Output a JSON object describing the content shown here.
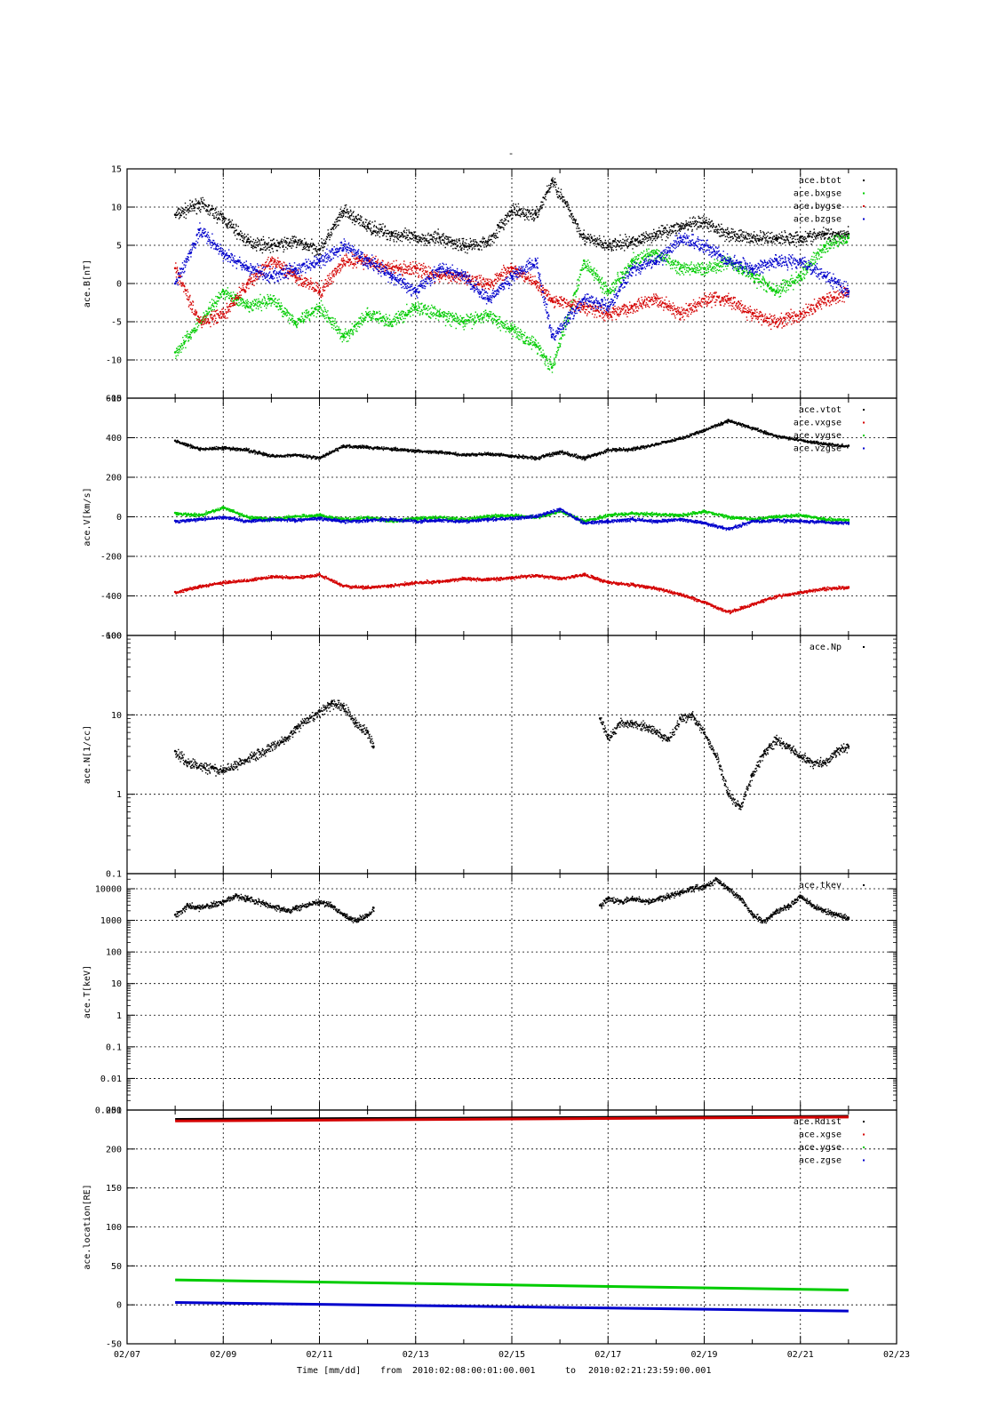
{
  "figure_title": "-",
  "footer": {
    "xlabel": "Time [mm/dd]",
    "range_from_label": "from",
    "range_start": "2010:02:08:00:01:00.001",
    "range_to_label": "to",
    "range_end": "2010:02:21:23:59:00.001"
  },
  "colors": {
    "black": "#000000",
    "red": "#d40000",
    "green": "#00cc00",
    "blue": "#0000cc"
  },
  "chart_data": [
    {
      "type": "scatter",
      "panel": "magnetic-field",
      "ylabel": "ace.B[nT]",
      "yscale": "linear",
      "ylim": [
        -15,
        15
      ],
      "yticks": [
        15,
        10,
        5,
        0,
        -5,
        -10,
        -15
      ],
      "xlim": [
        "02/07",
        "02/23"
      ],
      "grid": true,
      "legend_position": "top-right",
      "series": [
        {
          "name": "ace.btot",
          "color": "#000000",
          "x": [
            "02/08 00:00",
            "02/08 12:00",
            "02/09 00:00",
            "02/09 12:00",
            "02/10 00:00",
            "02/10 12:00",
            "02/11 00:00",
            "02/11 12:00",
            "02/12 00:00",
            "02/12 12:00",
            "02/13 00:00",
            "02/13 12:00",
            "02/14 00:00",
            "02/14 12:00",
            "02/15 00:00",
            "02/15 12:00",
            "02/15 20:00",
            "02/16 12:00",
            "02/17 00:00",
            "02/17 12:00",
            "02/18 00:00",
            "02/18 12:00",
            "02/19 00:00",
            "02/19 12:00",
            "02/20 00:00",
            "02/20 12:00",
            "02/21 00:00",
            "02/21 12:00",
            "02/22 00:00"
          ],
          "y": [
            9,
            10.5,
            8.5,
            5.5,
            5,
            5.5,
            4.5,
            9.5,
            7.5,
            6.5,
            6,
            6,
            5,
            5.5,
            9.5,
            9,
            13.5,
            6,
            5,
            5.5,
            6.5,
            7.5,
            8,
            6.5,
            6,
            6,
            6,
            6.5,
            6.5
          ]
        },
        {
          "name": "ace.bxgse",
          "color": "#00cc00",
          "x": [
            "02/08 00:00",
            "02/08 12:00",
            "02/09 00:00",
            "02/09 12:00",
            "02/10 00:00",
            "02/10 12:00",
            "02/11 00:00",
            "02/11 12:00",
            "02/12 00:00",
            "02/12 12:00",
            "02/13 00:00",
            "02/13 12:00",
            "02/14 00:00",
            "02/14 12:00",
            "02/15 00:00",
            "02/15 12:00",
            "02/15 20:00",
            "02/16 12:00",
            "02/17 00:00",
            "02/17 12:00",
            "02/18 00:00",
            "02/18 12:00",
            "02/19 00:00",
            "02/19 12:00",
            "02/20 00:00",
            "02/20 12:00",
            "02/21 00:00",
            "02/21 12:00",
            "02/22 00:00"
          ],
          "y": [
            -9,
            -5,
            -1,
            -3,
            -2,
            -5,
            -3,
            -7,
            -4,
            -5,
            -3,
            -4,
            -5,
            -4,
            -6,
            -8,
            -11,
            3,
            -1,
            3,
            4,
            2,
            2,
            3,
            1,
            -1,
            1,
            5,
            6
          ]
        },
        {
          "name": "ace.bygse",
          "color": "#d40000",
          "x": [
            "02/08 00:00",
            "02/08 12:00",
            "02/09 00:00",
            "02/09 12:00",
            "02/10 00:00",
            "02/10 12:00",
            "02/11 00:00",
            "02/11 12:00",
            "02/12 00:00",
            "02/12 12:00",
            "02/13 00:00",
            "02/13 12:00",
            "02/14 00:00",
            "02/14 12:00",
            "02/15 00:00",
            "02/15 12:00",
            "02/15 20:00",
            "02/16 12:00",
            "02/17 00:00",
            "02/17 12:00",
            "02/18 00:00",
            "02/18 12:00",
            "02/19 00:00",
            "02/19 12:00",
            "02/20 00:00",
            "02/20 12:00",
            "02/21 00:00",
            "02/21 12:00",
            "02/22 00:00"
          ],
          "y": [
            2,
            -5,
            -4,
            0,
            3,
            1,
            -1,
            3,
            3,
            2,
            2,
            1,
            1,
            0,
            2,
            0,
            -2,
            -3,
            -4,
            -3,
            -2,
            -4,
            -2,
            -2,
            -4,
            -5,
            -4,
            -2,
            -1
          ]
        },
        {
          "name": "ace.bzgse",
          "color": "#0000cc",
          "x": [
            "02/08 00:00",
            "02/08 12:00",
            "02/09 00:00",
            "02/09 12:00",
            "02/10 00:00",
            "02/10 12:00",
            "02/11 00:00",
            "02/11 12:00",
            "02/12 00:00",
            "02/12 12:00",
            "02/13 00:00",
            "02/13 12:00",
            "02/14 00:00",
            "02/14 12:00",
            "02/15 00:00",
            "02/15 12:00",
            "02/15 20:00",
            "02/16 12:00",
            "02/17 00:00",
            "02/17 12:00",
            "02/18 00:00",
            "02/18 12:00",
            "02/19 00:00",
            "02/19 12:00",
            "02/20 00:00",
            "02/20 12:00",
            "02/21 00:00",
            "02/21 12:00",
            "02/22 00:00"
          ],
          "y": [
            0,
            7,
            4,
            2,
            1,
            2,
            3,
            5,
            3,
            1,
            -1,
            2,
            1,
            -2,
            1,
            3,
            -7,
            -2,
            -3,
            2,
            3,
            6,
            5,
            3,
            2,
            3,
            3,
            1,
            -1
          ]
        }
      ]
    },
    {
      "type": "scatter",
      "panel": "velocity",
      "ylabel": "ace.V[km/s]",
      "yscale": "linear",
      "ylim": [
        -600,
        600
      ],
      "yticks": [
        600,
        400,
        200,
        0,
        -200,
        -400,
        -600
      ],
      "xlim": [
        "02/07",
        "02/23"
      ],
      "grid": true,
      "legend_position": "top-right",
      "series": [
        {
          "name": "ace.vtot",
          "color": "#000000",
          "x": [
            "02/08 00:00",
            "02/08 12:00",
            "02/09 00:00",
            "02/09 12:00",
            "02/10 00:00",
            "02/10 12:00",
            "02/11 00:00",
            "02/11 12:00",
            "02/12 00:00",
            "02/12 12:00",
            "02/13 00:00",
            "02/13 12:00",
            "02/14 00:00",
            "02/14 12:00",
            "02/15 00:00",
            "02/15 12:00",
            "02/16 00:00",
            "02/16 12:00",
            "02/17 00:00",
            "02/17 12:00",
            "02/18 00:00",
            "02/18 12:00",
            "02/19 00:00",
            "02/19 12:00",
            "02/20 00:00",
            "02/20 12:00",
            "02/21 00:00",
            "02/21 12:00",
            "02/22 00:00"
          ],
          "y": [
            385,
            345,
            350,
            340,
            310,
            315,
            300,
            360,
            355,
            345,
            335,
            330,
            315,
            320,
            310,
            300,
            330,
            300,
            340,
            345,
            370,
            400,
            440,
            490,
            450,
            410,
            390,
            370,
            360
          ]
        },
        {
          "name": "ace.vxgse",
          "color": "#d40000",
          "x": [
            "02/08 00:00",
            "02/08 12:00",
            "02/09 00:00",
            "02/09 12:00",
            "02/10 00:00",
            "02/10 12:00",
            "02/11 00:00",
            "02/11 12:00",
            "02/12 00:00",
            "02/12 12:00",
            "02/13 00:00",
            "02/13 12:00",
            "02/14 00:00",
            "02/14 12:00",
            "02/15 00:00",
            "02/15 12:00",
            "02/16 00:00",
            "02/16 12:00",
            "02/17 00:00",
            "02/17 12:00",
            "02/18 00:00",
            "02/18 12:00",
            "02/19 00:00",
            "02/19 12:00",
            "02/20 00:00",
            "02/20 12:00",
            "02/21 00:00",
            "02/21 12:00",
            "02/22 00:00"
          ],
          "y": [
            -380,
            -350,
            -330,
            -320,
            -300,
            -305,
            -290,
            -350,
            -355,
            -345,
            -330,
            -325,
            -310,
            -315,
            -305,
            -295,
            -310,
            -290,
            -330,
            -340,
            -360,
            -390,
            -430,
            -480,
            -440,
            -400,
            -380,
            -360,
            -355
          ]
        },
        {
          "name": "ace.vygse",
          "color": "#00cc00",
          "x": [
            "02/08 00:00",
            "02/08 12:00",
            "02/09 00:00",
            "02/09 12:00",
            "02/10 00:00",
            "02/10 12:00",
            "02/11 00:00",
            "02/11 12:00",
            "02/12 00:00",
            "02/12 12:00",
            "02/13 00:00",
            "02/13 12:00",
            "02/14 00:00",
            "02/14 12:00",
            "02/15 00:00",
            "02/15 12:00",
            "02/16 00:00",
            "02/16 12:00",
            "02/17 00:00",
            "02/17 12:00",
            "02/18 00:00",
            "02/18 12:00",
            "02/19 00:00",
            "02/19 12:00",
            "02/20 00:00",
            "02/20 12:00",
            "02/21 00:00",
            "02/21 12:00",
            "02/22 00:00"
          ],
          "y": [
            20,
            10,
            50,
            0,
            -10,
            5,
            10,
            -10,
            0,
            -20,
            -5,
            0,
            -10,
            5,
            10,
            0,
            30,
            -20,
            10,
            20,
            15,
            10,
            30,
            0,
            -10,
            5,
            10,
            -10,
            -15
          ]
        },
        {
          "name": "ace.vzgse",
          "color": "#0000cc",
          "x": [
            "02/08 00:00",
            "02/08 12:00",
            "02/09 00:00",
            "02/09 12:00",
            "02/10 00:00",
            "02/10 12:00",
            "02/11 00:00",
            "02/11 12:00",
            "02/12 00:00",
            "02/12 12:00",
            "02/13 00:00",
            "02/13 12:00",
            "02/14 00:00",
            "02/14 12:00",
            "02/15 00:00",
            "02/15 12:00",
            "02/16 00:00",
            "02/16 12:00",
            "02/17 00:00",
            "02/17 12:00",
            "02/18 00:00",
            "02/18 12:00",
            "02/19 00:00",
            "02/19 12:00",
            "02/20 00:00",
            "02/20 12:00",
            "02/21 00:00",
            "02/21 12:00",
            "02/22 00:00"
          ],
          "y": [
            -20,
            -10,
            0,
            -20,
            -10,
            -15,
            -5,
            -20,
            -15,
            -10,
            -20,
            -15,
            -20,
            -10,
            -5,
            5,
            40,
            -30,
            -20,
            -10,
            -20,
            -10,
            -30,
            -60,
            -20,
            -15,
            -20,
            -25,
            -30
          ]
        }
      ]
    },
    {
      "type": "scatter",
      "panel": "density",
      "ylabel": "ace.N[1/cc]",
      "yscale": "log",
      "ylim": [
        0.1,
        100
      ],
      "yticks": [
        100,
        10,
        1,
        0.1
      ],
      "xlim": [
        "02/07",
        "02/23"
      ],
      "grid": true,
      "legend_position": "top-right",
      "series": [
        {
          "name": "ace.Np",
          "color": "#000000",
          "x": [
            "02/08 00:00",
            "02/08 06:00",
            "02/09 00:00",
            "02/10 08:00",
            "02/10 12:00",
            "02/11 00:00",
            "02/11 06:00",
            "02/11 12:00",
            "02/11 18:00",
            "02/12 00:00",
            "02/12 03:00",
            "02/16 20:00",
            "02/17 00:00",
            "02/17 06:00",
            "02/17 12:00",
            "02/17 20:00",
            "02/18 06:00",
            "02/18 12:00",
            "02/18 18:00",
            "02/19 00:00",
            "02/19 06:00",
            "02/19 12:00",
            "02/19 18:00",
            "02/20 00:00",
            "02/20 06:00",
            "02/20 12:00",
            "02/20 18:00",
            "02/21 00:00",
            "02/21 06:00",
            "02/21 12:00",
            "02/21 18:00",
            "02/22 00:00"
          ],
          "y": [
            3.5,
            2.5,
            2,
            5,
            7,
            11,
            14,
            13,
            8,
            6,
            4,
            9,
            5,
            8,
            8,
            7,
            5,
            9,
            10,
            6,
            3,
            1,
            0.7,
            1.8,
            3.5,
            5,
            4,
            3,
            2.5,
            2.5,
            3.5,
            4
          ]
        }
      ]
    },
    {
      "type": "scatter",
      "panel": "temperature",
      "ylabel": "ace.T[keV]",
      "yscale": "log",
      "ylim": [
        0.001,
        30000
      ],
      "yticks": [
        10000,
        1000,
        100,
        10,
        1,
        0.1,
        0.01,
        0.001
      ],
      "ytick_labels": [
        "10000",
        "1000",
        "100",
        "10",
        "1",
        "0.1",
        "0.01",
        "0.001"
      ],
      "xlim": [
        "02/07",
        "02/23"
      ],
      "grid": true,
      "legend_position": "top-right",
      "series": [
        {
          "name": "ace.tkev",
          "color": "#000000",
          "x": [
            "02/08 00:00",
            "02/08 06:00",
            "02/08 12:00",
            "02/09 00:00",
            "02/09 06:00",
            "02/09 12:00",
            "02/10 08:00",
            "02/10 12:00",
            "02/11 00:00",
            "02/11 06:00",
            "02/11 12:00",
            "02/11 18:00",
            "02/12 00:00",
            "02/12 03:00",
            "02/16 20:00",
            "02/17 00:00",
            "02/17 06:00",
            "02/17 12:00",
            "02/17 20:00",
            "02/18 06:00",
            "02/18 12:00",
            "02/18 18:00",
            "02/19 00:00",
            "02/19 06:00",
            "02/19 12:00",
            "02/19 18:00",
            "02/20 00:00",
            "02/20 06:00",
            "02/20 12:00",
            "02/20 18:00",
            "02/21 00:00",
            "02/21 06:00",
            "02/21 12:00",
            "02/21 18:00",
            "02/22 00:00"
          ],
          "y": [
            1500,
            3000,
            2500,
            4000,
            6000,
            5000,
            2000,
            2500,
            4000,
            3000,
            1500,
            1000,
            1500,
            2500,
            3000,
            5000,
            4000,
            5000,
            4000,
            6000,
            8000,
            11000,
            12000,
            20000,
            10000,
            5000,
            1500,
            1000,
            2000,
            3000,
            6000,
            3000,
            2000,
            1500,
            1200
          ]
        }
      ]
    },
    {
      "type": "line",
      "panel": "location",
      "ylabel": "ace.location[RE]",
      "yscale": "linear",
      "ylim": [
        -50,
        250
      ],
      "yticks": [
        250,
        200,
        150,
        100,
        50,
        0,
        -50
      ],
      "xlim": [
        "02/07",
        "02/23"
      ],
      "xticks": [
        "02/07",
        "02/09",
        "02/11",
        "02/13",
        "02/15",
        "02/17",
        "02/19",
        "02/21",
        "02/23"
      ],
      "grid": true,
      "legend_position": "top-right",
      "series": [
        {
          "name": "ace.Rdist",
          "color": "#000000",
          "x": [
            "02/08 00:00",
            "02/22 00:00"
          ],
          "y": [
            238,
            242
          ]
        },
        {
          "name": "ace.xgse",
          "color": "#d40000",
          "x": [
            "02/08 00:00",
            "02/22 00:00"
          ],
          "y": [
            236,
            241
          ]
        },
        {
          "name": "ace.ygse",
          "color": "#00cc00",
          "x": [
            "02/08 00:00",
            "02/22 00:00"
          ],
          "y": [
            32,
            19
          ]
        },
        {
          "name": "ace.zgse",
          "color": "#0000cc",
          "x": [
            "02/08 00:00",
            "02/22 00:00"
          ],
          "y": [
            3,
            -8
          ]
        }
      ]
    }
  ]
}
